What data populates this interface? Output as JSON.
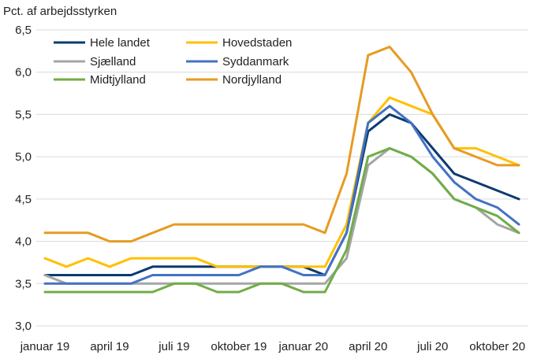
{
  "chart_data": {
    "type": "line",
    "ylabel": "Pct. af arbejdsstyrken",
    "ylim": [
      3.0,
      6.5
    ],
    "yticks": [
      "3,0",
      "3,5",
      "4,0",
      "4,5",
      "5,0",
      "5,5",
      "6,0",
      "6,5"
    ],
    "ytick_values": [
      3.0,
      3.5,
      4.0,
      4.5,
      5.0,
      5.5,
      6.0,
      6.5
    ],
    "x": [
      "2019-01",
      "2019-02",
      "2019-03",
      "2019-04",
      "2019-05",
      "2019-06",
      "2019-07",
      "2019-08",
      "2019-09",
      "2019-10",
      "2019-11",
      "2019-12",
      "2020-01",
      "2020-02",
      "2020-03",
      "2020-04",
      "2020-05",
      "2020-06",
      "2020-07",
      "2020-08",
      "2020-09",
      "2020-10",
      "2020-11"
    ],
    "xtick_labels": [
      {
        "label": "januar 19",
        "month_index": 0
      },
      {
        "label": "april 19",
        "month_index": 3
      },
      {
        "label": "juli 19",
        "month_index": 6
      },
      {
        "label": "oktober 19",
        "month_index": 9
      },
      {
        "label": "januar 20",
        "month_index": 12
      },
      {
        "label": "april 20",
        "month_index": 15
      },
      {
        "label": "juli 20",
        "month_index": 18
      },
      {
        "label": "oktober 20",
        "month_index": 21
      }
    ],
    "grid": "horizontal",
    "legend_position": "top-left",
    "series": [
      {
        "name": "Hele landet",
        "color": "#0b3b6f",
        "values": [
          3.6,
          3.6,
          3.6,
          3.6,
          3.6,
          3.7,
          3.7,
          3.7,
          3.7,
          3.7,
          3.7,
          3.7,
          3.7,
          3.6,
          4.1,
          5.3,
          5.5,
          5.4,
          5.1,
          4.8,
          4.7,
          4.6,
          4.5
        ]
      },
      {
        "name": "Hovedstaden",
        "color": "#ffc000",
        "values": [
          3.8,
          3.7,
          3.8,
          3.7,
          3.8,
          3.8,
          3.8,
          3.8,
          3.7,
          3.7,
          3.7,
          3.7,
          3.7,
          3.7,
          4.2,
          5.4,
          5.7,
          5.6,
          5.5,
          5.1,
          5.1,
          5.0,
          4.9
        ]
      },
      {
        "name": "Sjælland",
        "color": "#a5a5a5",
        "values": [
          3.6,
          3.5,
          3.5,
          3.5,
          3.5,
          3.5,
          3.5,
          3.5,
          3.5,
          3.5,
          3.5,
          3.5,
          3.5,
          3.5,
          3.8,
          4.9,
          5.1,
          5.0,
          4.8,
          4.5,
          4.4,
          4.2,
          4.1
        ]
      },
      {
        "name": "Syddanmark",
        "color": "#4472c4",
        "values": [
          3.5,
          3.5,
          3.5,
          3.5,
          3.5,
          3.6,
          3.6,
          3.6,
          3.6,
          3.6,
          3.7,
          3.7,
          3.6,
          3.6,
          4.1,
          5.4,
          5.6,
          5.4,
          5.0,
          4.7,
          4.5,
          4.4,
          4.2
        ]
      },
      {
        "name": "Midtjylland",
        "color": "#70ad47",
        "values": [
          3.4,
          3.4,
          3.4,
          3.4,
          3.4,
          3.4,
          3.5,
          3.5,
          3.4,
          3.4,
          3.5,
          3.5,
          3.4,
          3.4,
          3.9,
          5.0,
          5.1,
          5.0,
          4.8,
          4.5,
          4.4,
          4.3,
          4.1
        ]
      },
      {
        "name": "Nordjylland",
        "color": "#e69b22",
        "values": [
          4.1,
          4.1,
          4.1,
          4.0,
          4.0,
          4.1,
          4.2,
          4.2,
          4.2,
          4.2,
          4.2,
          4.2,
          4.2,
          4.1,
          4.8,
          6.2,
          6.3,
          6.0,
          5.5,
          5.1,
          5.0,
          4.9,
          4.9
        ]
      }
    ]
  }
}
